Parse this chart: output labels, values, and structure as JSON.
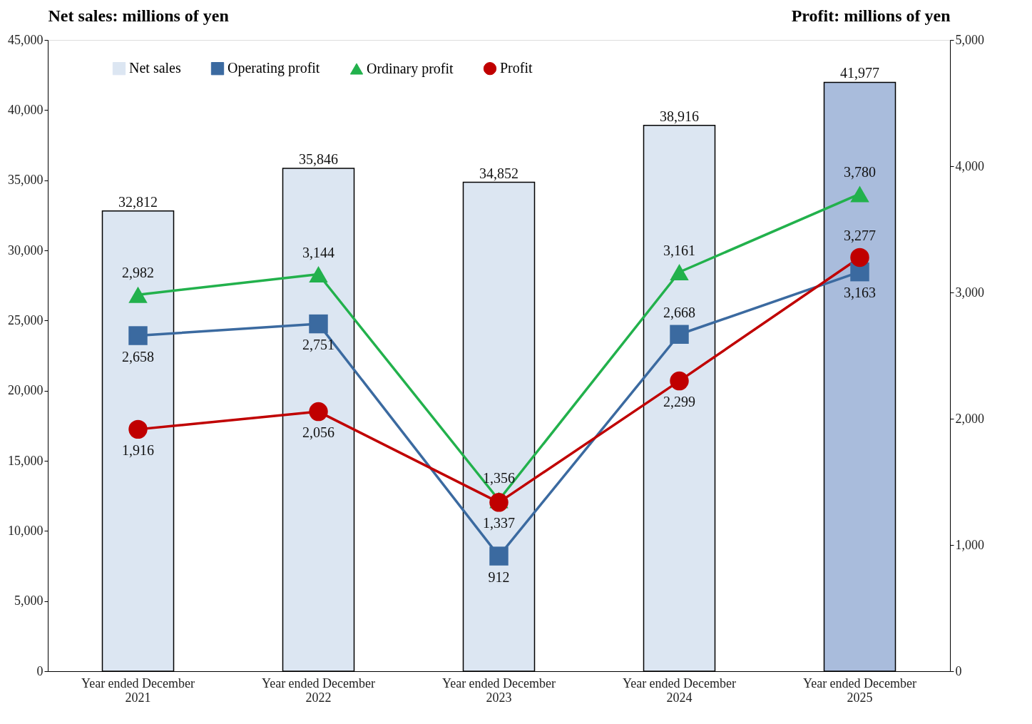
{
  "chart_data": {
    "type": "bar",
    "ylabel": "Net sales: millions of yen",
    "y2label": "Profit: millions of yen",
    "categories": [
      "Year ended December\n2021",
      "Year ended December\n2022",
      "Year ended December\n2023",
      "Year ended December\n2024",
      "Year ended December\n2025"
    ],
    "series": [
      {
        "name": "Net sales",
        "type": "bar",
        "colors": [
          "#dce6f2",
          "#dce6f2",
          "#dce6f2",
          "#dce6f2",
          "#a9bcdc"
        ],
        "values": [
          32812,
          35846,
          34852,
          38916,
          41977
        ],
        "value_labels": [
          "32,812",
          "35,846",
          "34,852",
          "38,916",
          "41,977"
        ]
      },
      {
        "name": "Operating profit",
        "type": "line",
        "axis": "y2",
        "color": "#3b6aa0",
        "marker": "square",
        "values": [
          2658,
          2751,
          912,
          2668,
          3163
        ],
        "value_labels": [
          "2,658",
          "2,751",
          "912",
          "2,668",
          "3,163"
        ]
      },
      {
        "name": "Ordinary profit",
        "type": "line",
        "axis": "y2",
        "color": "#22b14c",
        "marker": "triangle",
        "values": [
          2982,
          3144,
          1356,
          3161,
          3780
        ],
        "value_labels": [
          "2,982",
          "3,144",
          "1,356",
          "3,161",
          "3,780"
        ]
      },
      {
        "name": "Profit",
        "type": "line",
        "axis": "y2",
        "color": "#c00000",
        "marker": "circle",
        "values": [
          1916,
          2056,
          1337,
          2299,
          3277
        ],
        "value_labels": [
          "1,916",
          "2,056",
          "1,337",
          "2,299",
          "3,277"
        ]
      }
    ],
    "ylim": [
      0,
      45000
    ],
    "yticks": [
      0,
      {
        "value": 5000,
        "label": "5,000"
      },
      {
        "value": 10000,
        "label": "10,000"
      },
      {
        "value": 15000,
        "label": "15,000"
      },
      {
        "value": 20000,
        "label": "20,000"
      },
      {
        "value": 25000,
        "label": "25,000"
      },
      {
        "value": 30000,
        "label": "30,000"
      },
      {
        "value": 35000,
        "label": "35,000"
      },
      {
        "value": 40000,
        "label": "40,000"
      },
      {
        "value": 45000,
        "label": "45,000"
      }
    ],
    "y2lim": [
      0,
      5000
    ],
    "y2ticks": [
      0,
      {
        "value": 1000,
        "label": "1,000"
      },
      {
        "value": 2000,
        "label": "2,000"
      },
      {
        "value": 3000,
        "label": "3,000"
      },
      {
        "value": 4000,
        "label": "4,000"
      },
      {
        "value": 5000,
        "label": "5,000"
      }
    ],
    "legend": "top",
    "grid": false
  }
}
